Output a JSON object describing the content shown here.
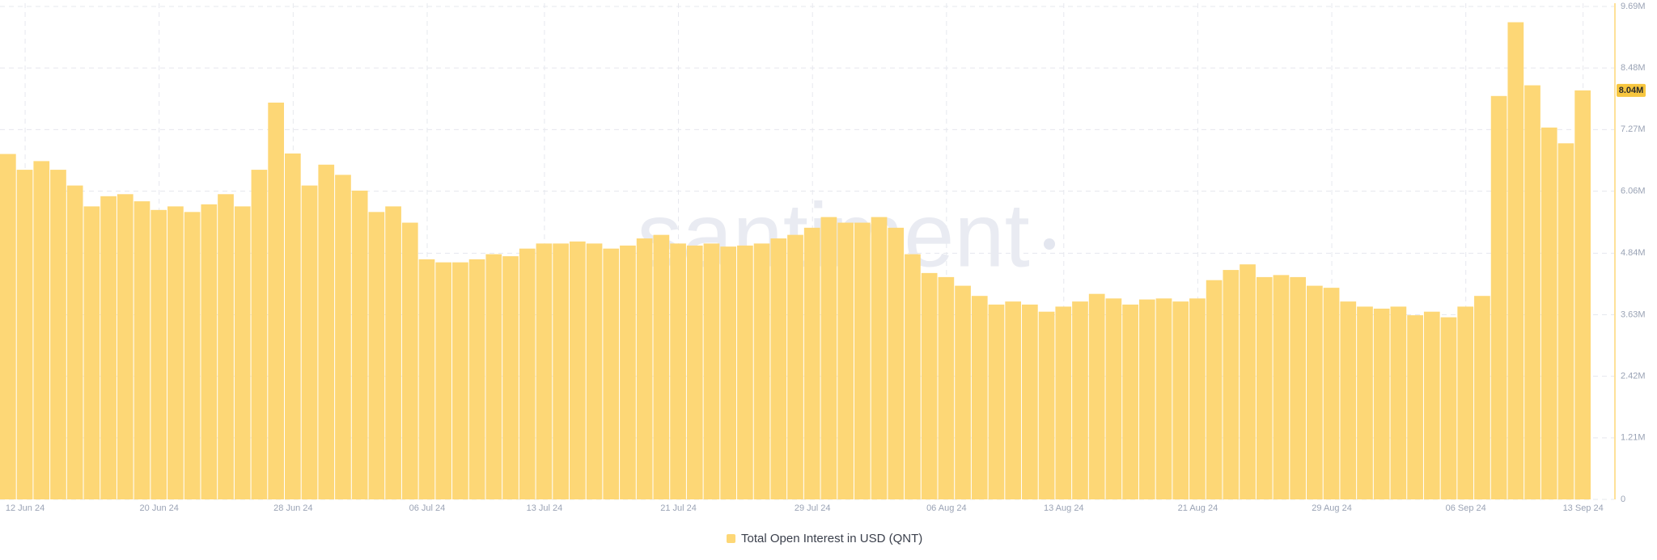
{
  "chart_data": {
    "type": "bar",
    "watermark": "santiment",
    "legend": "Total Open Interest in USD (QNT)",
    "color": "#fdd776",
    "grid": true,
    "xlim": [
      "2024-06-11",
      "2024-09-13"
    ],
    "xticks": [
      {
        "value": "2024-06-12",
        "label": "12 Jun 24"
      },
      {
        "value": "2024-06-20",
        "label": "20 Jun 24"
      },
      {
        "value": "2024-06-28",
        "label": "28 Jun 24"
      },
      {
        "value": "2024-07-06",
        "label": "06 Jul 24"
      },
      {
        "value": "2024-07-13",
        "label": "13 Jul 24"
      },
      {
        "value": "2024-07-21",
        "label": "21 Jul 24"
      },
      {
        "value": "2024-07-29",
        "label": "29 Jul 24"
      },
      {
        "value": "2024-08-06",
        "label": "06 Aug 24"
      },
      {
        "value": "2024-08-13",
        "label": "13 Aug 24"
      },
      {
        "value": "2024-08-21",
        "label": "21 Aug 24"
      },
      {
        "value": "2024-08-29",
        "label": "29 Aug 24"
      },
      {
        "value": "2024-09-06",
        "label": "06 Sep 24"
      },
      {
        "value": "2024-09-13",
        "label": "13 Sep 24"
      }
    ],
    "ylim": [
      0,
      9690000
    ],
    "yticks": [
      0,
      {
        "value": 1210000,
        "label": "1.21M"
      },
      {
        "value": 2420000,
        "label": "2.42M"
      },
      {
        "value": 3630000,
        "label": "3.63M"
      },
      {
        "value": 4840000,
        "label": "4.84M"
      },
      {
        "value": 6060000,
        "label": "6.06M"
      },
      {
        "value": 7270000,
        "label": "7.27M"
      },
      {
        "value": 8480000,
        "label": "8.48M"
      },
      {
        "value": 9690000,
        "label": "9.69M"
      }
    ],
    "current_value": {
      "value": 8040000,
      "label": "8.04M"
    },
    "x": [
      "2024-06-11",
      "2024-06-12",
      "2024-06-13",
      "2024-06-14",
      "2024-06-15",
      "2024-06-16",
      "2024-06-17",
      "2024-06-18",
      "2024-06-19",
      "2024-06-20",
      "2024-06-21",
      "2024-06-22",
      "2024-06-23",
      "2024-06-24",
      "2024-06-25",
      "2024-06-26",
      "2024-06-27",
      "2024-06-28",
      "2024-06-29",
      "2024-06-30",
      "2024-07-01",
      "2024-07-02",
      "2024-07-03",
      "2024-07-04",
      "2024-07-05",
      "2024-07-06",
      "2024-07-07",
      "2024-07-08",
      "2024-07-09",
      "2024-07-10",
      "2024-07-11",
      "2024-07-12",
      "2024-07-13",
      "2024-07-14",
      "2024-07-15",
      "2024-07-16",
      "2024-07-17",
      "2024-07-18",
      "2024-07-19",
      "2024-07-20",
      "2024-07-21",
      "2024-07-22",
      "2024-07-23",
      "2024-07-24",
      "2024-07-25",
      "2024-07-26",
      "2024-07-27",
      "2024-07-28",
      "2024-07-29",
      "2024-07-30",
      "2024-07-31",
      "2024-08-01",
      "2024-08-02",
      "2024-08-03",
      "2024-08-04",
      "2024-08-05",
      "2024-08-06",
      "2024-08-07",
      "2024-08-08",
      "2024-08-09",
      "2024-08-10",
      "2024-08-11",
      "2024-08-12",
      "2024-08-13",
      "2024-08-14",
      "2024-08-15",
      "2024-08-16",
      "2024-08-17",
      "2024-08-18",
      "2024-08-19",
      "2024-08-20",
      "2024-08-21",
      "2024-08-22",
      "2024-08-23",
      "2024-08-24",
      "2024-08-25",
      "2024-08-26",
      "2024-08-27",
      "2024-08-28",
      "2024-08-29",
      "2024-08-30",
      "2024-08-31",
      "2024-09-01",
      "2024-09-02",
      "2024-09-03",
      "2024-09-04",
      "2024-09-05",
      "2024-09-06",
      "2024-09-07",
      "2024-09-08",
      "2024-09-09",
      "2024-09-10",
      "2024-09-11",
      "2024-09-12",
      "2024-09-13"
    ],
    "values": [
      6790000,
      6480000,
      6650000,
      6480000,
      6170000,
      5760000,
      5960000,
      6000000,
      5860000,
      5690000,
      5760000,
      5650000,
      5800000,
      6000000,
      5760000,
      6480000,
      7800000,
      6800000,
      6170000,
      6580000,
      6380000,
      6070000,
      5650000,
      5760000,
      5440000,
      4720000,
      4660000,
      4660000,
      4720000,
      4820000,
      4780000,
      4930000,
      5030000,
      5030000,
      5070000,
      5030000,
      4930000,
      4990000,
      5130000,
      5200000,
      5030000,
      4990000,
      5030000,
      4970000,
      4990000,
      5030000,
      5130000,
      5200000,
      5340000,
      5550000,
      5440000,
      5440000,
      5550000,
      5340000,
      4820000,
      4450000,
      4370000,
      4200000,
      4000000,
      3830000,
      3890000,
      3830000,
      3690000,
      3790000,
      3890000,
      4040000,
      3950000,
      3830000,
      3930000,
      3950000,
      3890000,
      3950000,
      4310000,
      4510000,
      4620000,
      4370000,
      4410000,
      4370000,
      4200000,
      4160000,
      3890000,
      3790000,
      3750000,
      3790000,
      3620000,
      3690000,
      3580000,
      3790000,
      4000000,
      7930000,
      9380000,
      8140000,
      7310000,
      7000000,
      8040000
    ]
  }
}
